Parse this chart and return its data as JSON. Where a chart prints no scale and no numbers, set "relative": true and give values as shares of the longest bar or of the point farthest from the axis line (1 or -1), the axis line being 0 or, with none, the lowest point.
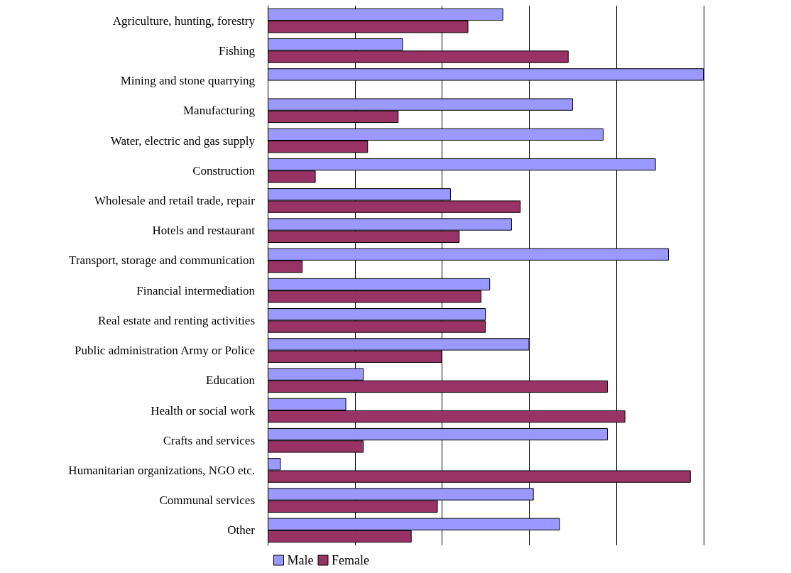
{
  "chart_data": {
    "type": "bar",
    "orientation": "horizontal",
    "relative": true,
    "grid": "x",
    "legend": "bottom",
    "categories": [
      "Agriculture, hunting, forestry",
      "Fishing",
      "Mining and stone quarrying",
      "Manufacturing",
      "Water, electric and gas supply",
      "Construction",
      "Wholesale and retail trade, repair",
      "Hotels and restaurant",
      "Transport, storage and communication",
      "Financial intermediation",
      "Real estate and renting activities",
      "Public administration Army or Police",
      "Education",
      "Health or social work",
      "Crafts and services",
      "Humanitarian organizations, NGO etc.",
      "Communal services",
      "Other"
    ],
    "series": [
      {
        "name": "Male",
        "color": "#9999ff",
        "values": [
          0.54,
          0.31,
          1.0,
          0.7,
          0.77,
          0.89,
          0.42,
          0.56,
          0.92,
          0.51,
          0.5,
          0.6,
          0.22,
          0.18,
          0.78,
          0.03,
          0.61,
          0.67
        ]
      },
      {
        "name": "Female",
        "color": "#993366",
        "values": [
          0.46,
          0.69,
          null,
          0.3,
          0.23,
          0.11,
          0.58,
          0.44,
          0.08,
          0.49,
          0.5,
          0.4,
          0.78,
          0.82,
          0.22,
          0.97,
          0.39,
          0.33
        ]
      }
    ]
  }
}
